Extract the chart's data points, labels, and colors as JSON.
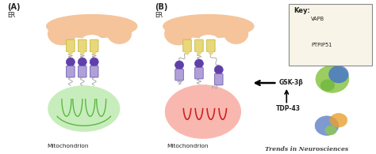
{
  "fig_width": 4.74,
  "fig_height": 1.95,
  "dpi": 100,
  "bg_color": "#ffffff",
  "er_color": "#f5c49a",
  "er_outline": "#d4956b",
  "mito_A_fill": "#c8edbc",
  "mito_A_outline": "#5ab840",
  "mito_A_inner": "#5ab840",
  "mito_B_fill": "#f8b8b0",
  "mito_B_outline": "#e03030",
  "mito_B_inner": "#d02020",
  "vapb_color": "#e8d87a",
  "vapb_edge": "#c8b840",
  "ptpip_body": "#b0a0d8",
  "ptpip_ball": "#6040a8",
  "connector_color": "#888888",
  "label_A": "(A)",
  "label_B": "(B)",
  "label_ER_A": "ER",
  "label_ER_B": "ER",
  "label_mito_A": "Mitochondrion",
  "label_mito_B": "Mitochondrion",
  "label_GSK": "GSK-3β",
  "label_TDP": "TDP-43",
  "label_key": "Key:",
  "label_VAPB": "VAPB",
  "label_PTPIP": "PTPIP51",
  "label_trends": "Trends in Neurosciences",
  "arrow_color": "#111111",
  "key_box_color": "#f8f5e8",
  "key_border": "#888888",
  "text_color": "#222222",
  "font_size_label": 7,
  "font_size_small": 5.5,
  "font_size_tiny": 4.8,
  "font_size_trends": 5.5
}
